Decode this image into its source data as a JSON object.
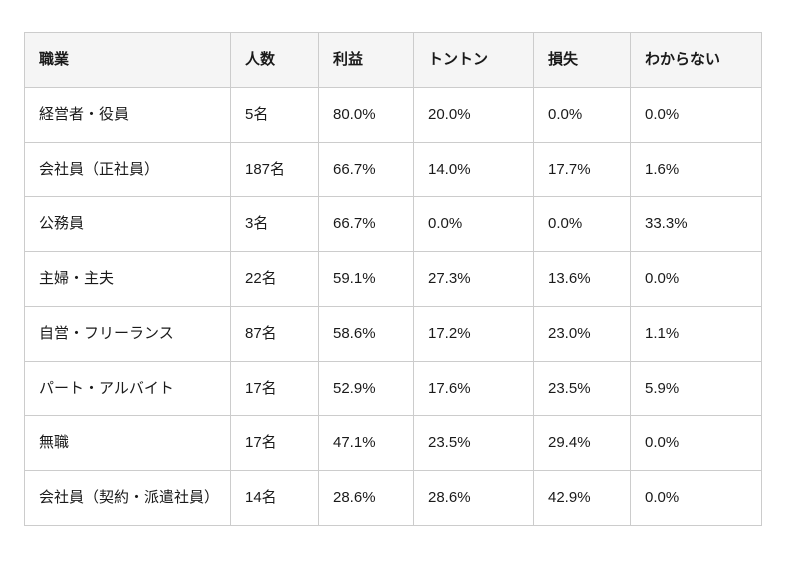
{
  "table": {
    "headers": [
      "職業",
      "人数",
      "利益",
      "トントン",
      "損失",
      "わからない"
    ],
    "rows": [
      [
        "経営者・役員",
        "5名",
        "80.0%",
        "20.0%",
        "0.0%",
        "0.0%"
      ],
      [
        "会社員（正社員）",
        "187名",
        "66.7%",
        "14.0%",
        "17.7%",
        "1.6%"
      ],
      [
        "公務員",
        "3名",
        "66.7%",
        "0.0%",
        "0.0%",
        "33.3%"
      ],
      [
        "主婦・主夫",
        "22名",
        "59.1%",
        "27.3%",
        "13.6%",
        "0.0%"
      ],
      [
        "自営・フリーランス",
        "87名",
        "58.6%",
        "17.2%",
        "23.0%",
        "1.1%"
      ],
      [
        "パート・アルバイト",
        "17名",
        "52.9%",
        "17.6%",
        "23.5%",
        "5.9%"
      ],
      [
        "無職",
        "17名",
        "47.1%",
        "23.5%",
        "29.4%",
        "0.0%"
      ],
      [
        "会社員（契約・派遣社員）",
        "14名",
        "28.6%",
        "28.6%",
        "42.9%",
        "0.0%"
      ]
    ]
  },
  "chart_data": {
    "type": "table",
    "columns": [
      "職業",
      "人数",
      "利益",
      "トントン",
      "損失",
      "わからない"
    ],
    "rows": [
      {
        "職業": "経営者・役員",
        "人数": 5,
        "利益": 80.0,
        "トントン": 20.0,
        "損失": 0.0,
        "わからない": 0.0
      },
      {
        "職業": "会社員（正社員）",
        "人数": 187,
        "利益": 66.7,
        "トントン": 14.0,
        "損失": 17.7,
        "わからない": 1.6
      },
      {
        "職業": "公務員",
        "人数": 3,
        "利益": 66.7,
        "トントン": 0.0,
        "損失": 0.0,
        "わからない": 33.3
      },
      {
        "職業": "主婦・主夫",
        "人数": 22,
        "利益": 59.1,
        "トントン": 27.3,
        "損失": 13.6,
        "わからない": 0.0
      },
      {
        "職業": "自営・フリーランス",
        "人数": 87,
        "利益": 58.6,
        "トントン": 17.2,
        "損失": 23.0,
        "わからない": 1.1
      },
      {
        "職業": "パート・アルバイト",
        "人数": 17,
        "利益": 52.9,
        "トントン": 17.6,
        "損失": 23.5,
        "わからない": 5.9
      },
      {
        "職業": "無職",
        "人数": 17,
        "利益": 47.1,
        "トントン": 23.5,
        "損失": 29.4,
        "わからない": 0.0
      },
      {
        "職業": "会社員（契約・派遣社員）",
        "人数": 14,
        "利益": 28.6,
        "トントン": 28.6,
        "損失": 42.9,
        "わからない": 0.0
      }
    ],
    "value_units": {
      "人数": "名",
      "利益": "%",
      "トントン": "%",
      "損失": "%",
      "わからない": "%"
    }
  },
  "colors": {
    "border": "#cccccc",
    "header_background": "#f5f5f5",
    "text": "#1a1a1a",
    "page_background": "#ffffff"
  }
}
